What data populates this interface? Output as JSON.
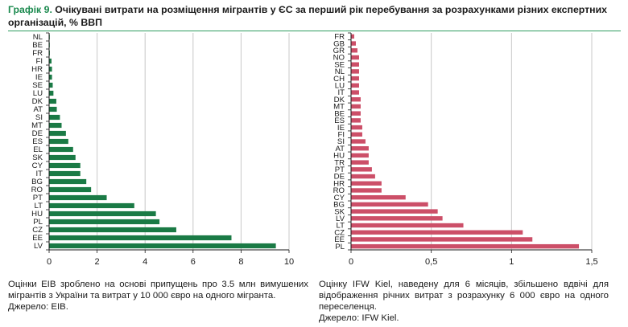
{
  "title": {
    "prefix": "Графік 9.",
    "text": "Очікувані витрати на розміщення мігрантів у ЄС за перший рік перебування за розрахунками різних експертних організацій, % ВВП"
  },
  "colors": {
    "left_bars": "#1a7a45",
    "right_bars": "#cc4f68",
    "grid": "#c8c8c8",
    "axis": "#1a1a1a"
  },
  "chart_data": [
    {
      "type": "bar",
      "orientation": "horizontal",
      "categories": [
        "NL",
        "BE",
        "FR",
        "FI",
        "HR",
        "IE",
        "SE",
        "LU",
        "DK",
        "AT",
        "SI",
        "MT",
        "DE",
        "ES",
        "EL",
        "SK",
        "CY",
        "IT",
        "BG",
        "RO",
        "PT",
        "LT",
        "HU",
        "PL",
        "CZ",
        "EE",
        "LV"
      ],
      "values": [
        0.02,
        0.02,
        0.03,
        0.1,
        0.12,
        0.12,
        0.15,
        0.18,
        0.3,
        0.32,
        0.45,
        0.52,
        0.7,
        0.8,
        1.0,
        1.1,
        1.3,
        1.3,
        1.55,
        1.75,
        2.4,
        3.55,
        4.45,
        4.6,
        5.3,
        7.6,
        9.45
      ],
      "xlim": [
        0,
        10
      ],
      "xticks": [
        "0",
        "2",
        "4",
        "6",
        "8",
        "10"
      ],
      "xtick_values": [
        0,
        2,
        4,
        6,
        8,
        10
      ],
      "grid": true
    },
    {
      "type": "bar",
      "orientation": "horizontal",
      "categories": [
        "FR",
        "GB",
        "GR",
        "NO",
        "SE",
        "NL",
        "CH",
        "LU",
        "IT",
        "DK",
        "MT",
        "BE",
        "ES",
        "IE",
        "FI",
        "SI",
        "AT",
        "HU",
        "TR",
        "PT",
        "DE",
        "HR",
        "RO",
        "CY",
        "BG",
        "SK",
        "LV",
        "LT",
        "CZ",
        "EE",
        "PL"
      ],
      "values": [
        0.02,
        0.03,
        0.04,
        0.05,
        0.05,
        0.05,
        0.05,
        0.05,
        0.05,
        0.06,
        0.06,
        0.06,
        0.06,
        0.07,
        0.07,
        0.09,
        0.11,
        0.11,
        0.11,
        0.13,
        0.15,
        0.19,
        0.19,
        0.34,
        0.48,
        0.54,
        0.57,
        0.7,
        1.07,
        1.13,
        1.42
      ],
      "xlim": [
        0,
        1.5
      ],
      "xticks": [
        "0",
        "0,5",
        "1",
        "1,5"
      ],
      "xtick_values": [
        0,
        0.5,
        1,
        1.5
      ],
      "grid": true
    }
  ],
  "notes": {
    "left": {
      "text": "Оцінки EIB зроблено на основі припущень про 3.5 млн вимушених мігрантів з України та витрат у 10 000 євро на одного мігранта.",
      "source": "Джерело: EIB."
    },
    "right": {
      "text": "Оцінку IFW Kiel, наведену для 6 місяців, збільшено вдвічі для відображення річних витрат з розрахунку 6 000 євро на одного переселенця.",
      "source": "Джерело: IFW Kiel."
    }
  }
}
